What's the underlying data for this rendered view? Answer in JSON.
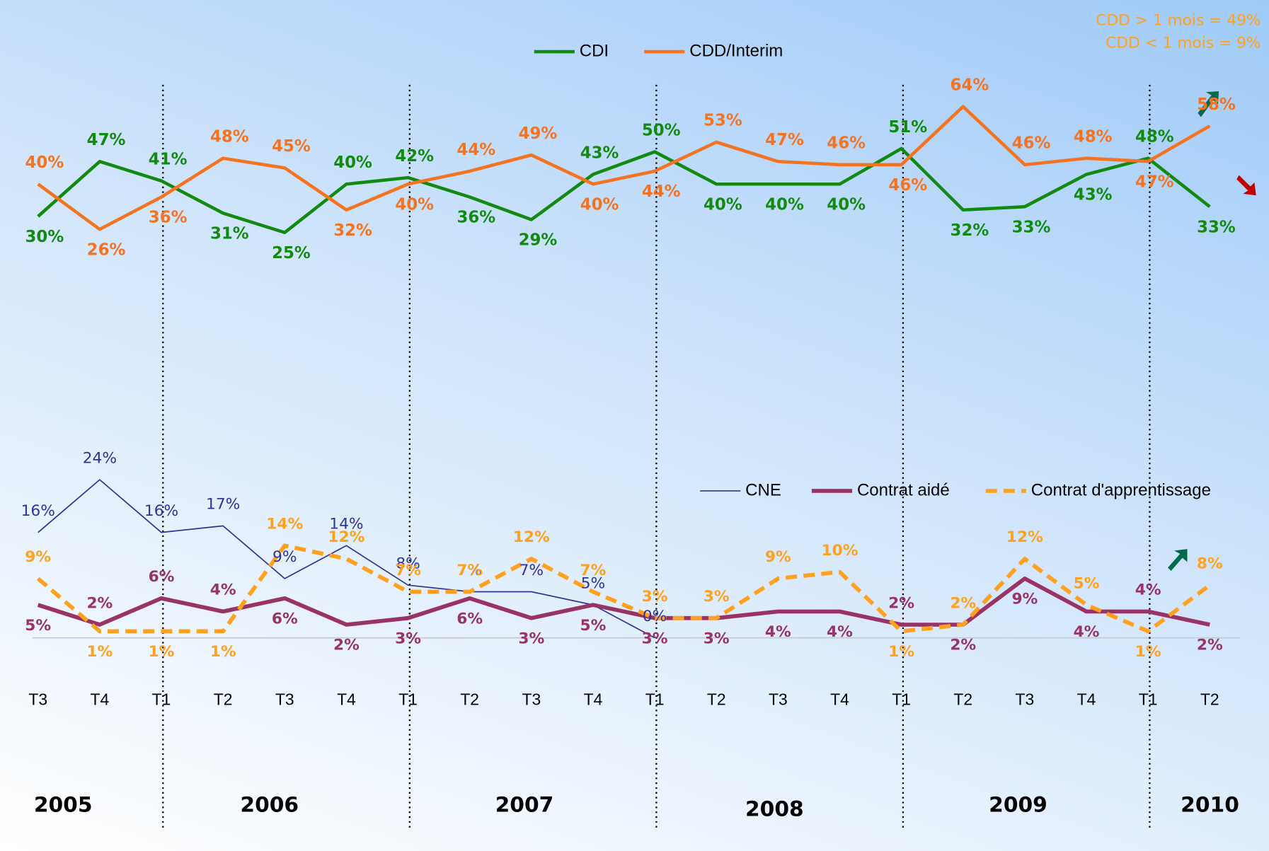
{
  "chart_data": [
    {
      "type": "line",
      "annotations": [
        "CDD > 1 mois = 49%",
        "CDD < 1 mois = 9%"
      ],
      "ylim": [
        20,
        70
      ],
      "series": [
        {
          "name": "CDI",
          "color": "#128a12",
          "values": [
            30,
            47,
            41,
            31,
            25,
            40,
            42,
            36,
            29,
            43,
            50,
            40,
            40,
            40,
            51,
            32,
            33,
            43,
            48,
            33
          ],
          "value_labels": [
            "30%",
            "47%",
            "41%",
            "31%",
            "25%",
            "40%",
            "42%",
            "36%",
            "29%",
            "43%",
            "50%",
            "40%",
            "40%",
            "40%",
            "51%",
            "32%",
            "33%",
            "43%",
            "48%",
            "33%"
          ]
        },
        {
          "name": "CDD/Interim",
          "color": "#f47320",
          "values": [
            40,
            26,
            36,
            48,
            45,
            32,
            40,
            44,
            49,
            40,
            44,
            53,
            47,
            46,
            46,
            64,
            46,
            48,
            47,
            58
          ],
          "value_labels": [
            "40%",
            "26%",
            "36%",
            "48%",
            "45%",
            "32%",
            "40%",
            "44%",
            "49%",
            "40%",
            "44%",
            "53%",
            "47%",
            "46%",
            "46%",
            "64%",
            "46%",
            "48%",
            "47%",
            "58%"
          ]
        }
      ]
    },
    {
      "type": "line",
      "categories": [
        "T3",
        "T4",
        "T1",
        "T2",
        "T3",
        "T4",
        "T1",
        "T2",
        "T3",
        "T4",
        "T1",
        "T2",
        "T3",
        "T4",
        "T1",
        "T2",
        "T3",
        "T4",
        "T1",
        "T2"
      ],
      "years": [
        "2005",
        "2006",
        "2007",
        "2008",
        "2009",
        "2010"
      ],
      "ylim": [
        0,
        25
      ],
      "series": [
        {
          "name": "CNE",
          "color": "#333399",
          "width": 1.5,
          "values": [
            16,
            24,
            16,
            17,
            9,
            14,
            8,
            7,
            7,
            5,
            0,
            null,
            null,
            null,
            null,
            null,
            null,
            null,
            null,
            null
          ],
          "value_labels": [
            "16%",
            "24%",
            "16%",
            "17%",
            "9%",
            "14%",
            "8%",
            "7%",
            "7%",
            "5%",
            "0%",
            null,
            null,
            null,
            null,
            null,
            null,
            null,
            null,
            null
          ]
        },
        {
          "name": "Contrat aidé",
          "color": "#993366",
          "width": 5,
          "values": [
            5,
            2,
            6,
            4,
            6,
            2,
            3,
            6,
            3,
            5,
            3,
            3,
            4,
            4,
            2,
            2,
            9,
            4,
            4,
            2
          ],
          "value_labels": [
            "5%",
            "2%",
            "6%",
            "4%",
            "6%",
            "2%",
            "3%",
            "6%",
            "3%",
            "5%",
            "3%",
            "3%",
            "4%",
            "4%",
            "2%",
            "2%",
            "9%",
            "4%",
            "4%",
            "2%"
          ]
        },
        {
          "name": "Contrat d'apprentissage",
          "color": "#ffa11e",
          "width": 5,
          "dashed": true,
          "values": [
            9,
            1,
            1,
            1,
            14,
            12,
            7,
            7,
            12,
            7,
            3,
            3,
            9,
            10,
            1,
            2,
            12,
            5,
            1,
            8
          ],
          "value_labels": [
            "9%",
            "1%",
            "1%",
            "1%",
            "14%",
            "12%",
            "7%",
            "7%",
            "12%",
            "7%",
            "3%",
            "3%",
            "9%",
            "10%",
            "1%",
            "2%",
            "12%",
            "5%",
            "1%",
            "8%"
          ]
        }
      ]
    }
  ]
}
